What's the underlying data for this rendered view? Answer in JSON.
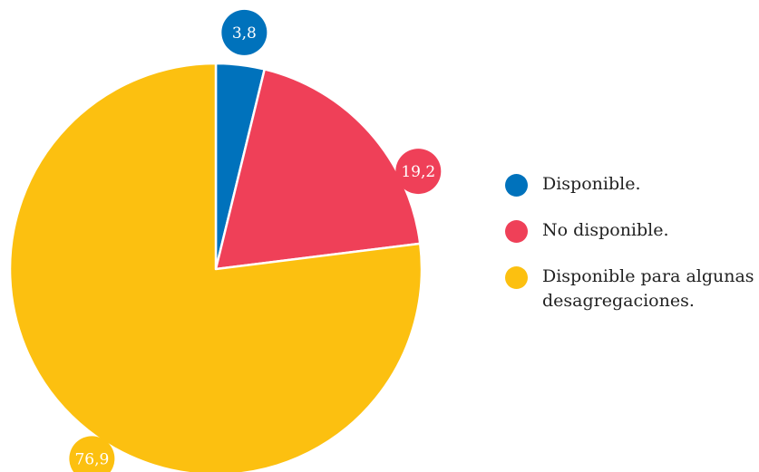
{
  "chart_data": {
    "type": "pie",
    "start_angle": "top",
    "direction": "clockwise",
    "slices": [
      {
        "label": "Disponible.",
        "value": 3.8,
        "value_label": "3,8",
        "color": "#0072bc"
      },
      {
        "label": "No disponible.",
        "value": 19.2,
        "value_label": "19,2",
        "color": "#ef4058"
      },
      {
        "label": "Disponible para algunas desagregaciones.",
        "value": 76.9,
        "value_label": "76,9",
        "color": "#fcc010"
      }
    ],
    "legend_position": "right"
  }
}
